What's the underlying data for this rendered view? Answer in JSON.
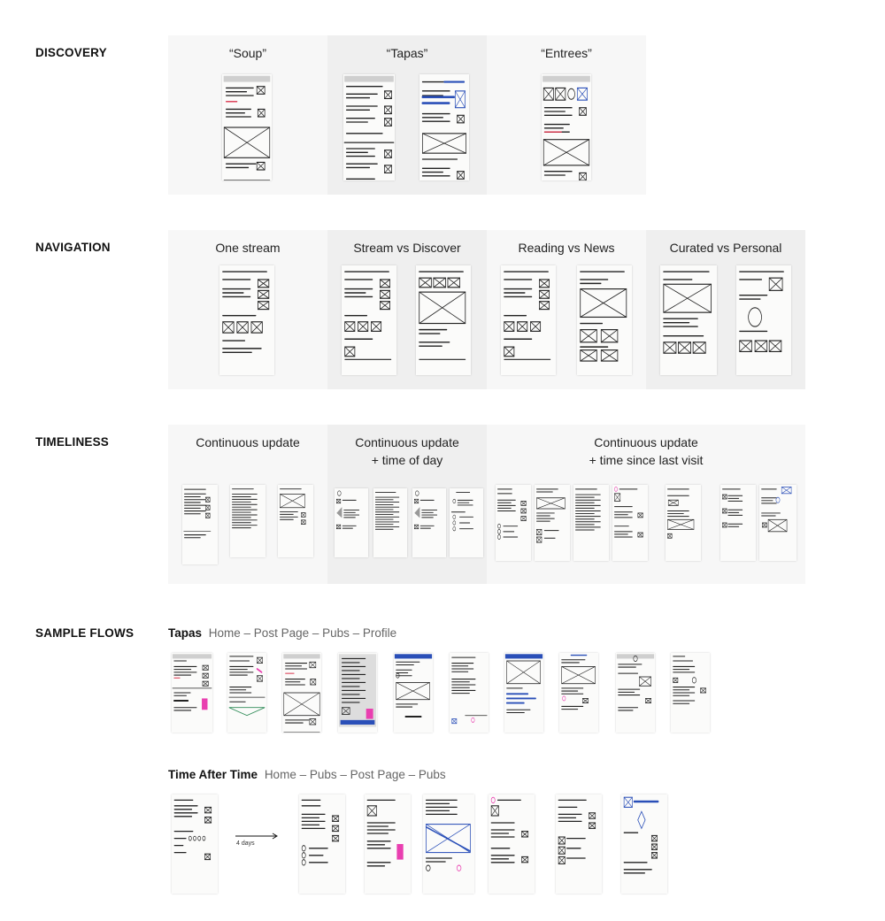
{
  "sections": {
    "discovery": {
      "label": "DISCOVERY",
      "panels": [
        {
          "title": "“Soup”"
        },
        {
          "title": "“Tapas”"
        },
        {
          "title": "“Entrees”"
        }
      ]
    },
    "navigation": {
      "label": "NAVIGATION",
      "panels": [
        {
          "title": "One stream"
        },
        {
          "title": "Stream vs Discover"
        },
        {
          "title": "Reading vs News"
        },
        {
          "title": "Curated vs Personal"
        }
      ]
    },
    "timeliness": {
      "label": "TIMELINESS",
      "panels": [
        {
          "title_line1": "Continuous update",
          "title_line2": ""
        },
        {
          "title_line1": "Continuous update",
          "title_line2": "+ time of day"
        },
        {
          "title_line1": "Continuous update",
          "title_line2": "+ time since last visit"
        }
      ]
    },
    "sample_flows": {
      "label": "SAMPLE FLOWS",
      "flows": [
        {
          "name": "Tapas",
          "path": "Home – Post Page – Pubs – Profile"
        },
        {
          "name": "Time After Time",
          "path": "Home – Pubs – Post Page – Pubs"
        }
      ],
      "gap_label": "4 days"
    }
  },
  "colors": {
    "panel_light": "#f7f7f7",
    "panel_dark": "#efefef",
    "sketch_ink": "#222222",
    "accent_blue": "#2a4fb8",
    "accent_pink": "#e93fb0",
    "accent_green": "#2e8b57",
    "accent_red": "#d9324a"
  }
}
